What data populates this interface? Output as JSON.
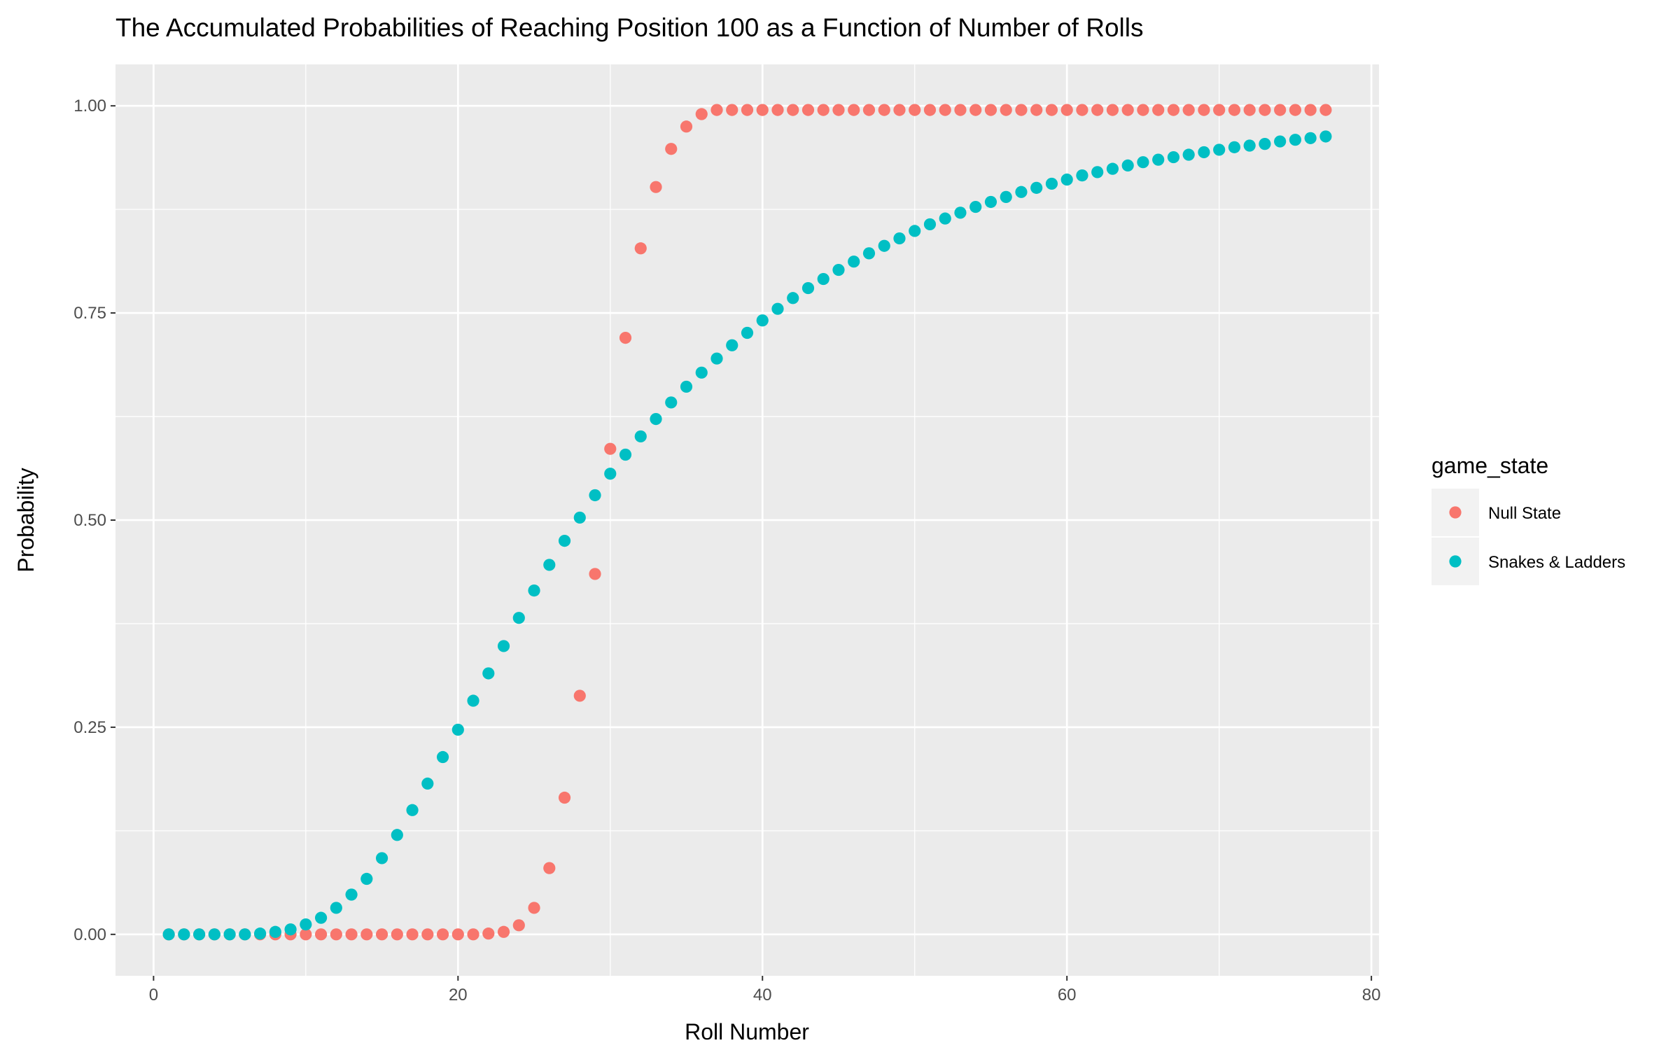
{
  "chart_data": {
    "type": "scatter",
    "title": "The Accumulated Probabilities of Reaching Position 100 as a Function of Number of Rolls",
    "xlabel": "Roll Number",
    "ylabel": "Probability",
    "xlim": [
      -2.5,
      80.5
    ],
    "ylim": [
      -0.05,
      1.05
    ],
    "x_ticks": [
      0,
      20,
      40,
      60,
      80
    ],
    "x_tick_labels": [
      "0",
      "20",
      "40",
      "60",
      "80"
    ],
    "y_ticks": [
      0,
      0.25,
      0.5,
      0.75,
      1
    ],
    "y_tick_labels": [
      "0.00",
      "0.25",
      "0.50",
      "0.75",
      "1.00"
    ],
    "grid": true,
    "legend": {
      "title": "game_state",
      "position": "right"
    },
    "series": [
      {
        "name": "Null State",
        "color": "#F8766D",
        "x": [
          1,
          2,
          3,
          4,
          5,
          6,
          7,
          8,
          9,
          10,
          11,
          12,
          13,
          14,
          15,
          16,
          17,
          18,
          19,
          20,
          21,
          22,
          23,
          24,
          25,
          26,
          27,
          28,
          29,
          30,
          31,
          32,
          33,
          34,
          35,
          36,
          37,
          38,
          39,
          40,
          41,
          42,
          43,
          44,
          45,
          46,
          47,
          48,
          49,
          50,
          51,
          52,
          53,
          54,
          55,
          56,
          57,
          58,
          59,
          60,
          61,
          62,
          63,
          64,
          65,
          66,
          67,
          68,
          69,
          70,
          71,
          72,
          73,
          74,
          75,
          76,
          77
        ],
        "y": [
          0,
          0,
          0,
          0,
          0,
          0,
          0,
          0,
          0,
          0,
          0,
          0,
          0,
          0,
          0,
          0,
          0,
          0,
          0,
          0,
          0,
          0.001,
          0.003,
          0.011,
          0.032,
          0.08,
          0.165,
          0.288,
          0.435,
          0.586,
          0.72,
          0.828,
          0.902,
          0.948,
          0.975,
          0.99,
          0.995,
          0.995,
          0.995,
          0.995,
          0.995,
          0.995,
          0.995,
          0.995,
          0.995,
          0.995,
          0.995,
          0.995,
          0.995,
          0.995,
          0.995,
          0.995,
          0.995,
          0.995,
          0.995,
          0.995,
          0.995,
          0.995,
          0.995,
          0.995,
          0.995,
          0.995,
          0.995,
          0.995,
          0.995,
          0.995,
          0.995,
          0.995,
          0.995,
          0.995,
          0.995,
          0.995,
          0.995,
          0.995,
          0.995,
          0.995,
          0.995
        ]
      },
      {
        "name": "Snakes & Ladders",
        "color": "#00BFC4",
        "x": [
          1,
          2,
          3,
          4,
          5,
          6,
          7,
          8,
          9,
          10,
          11,
          12,
          13,
          14,
          15,
          16,
          17,
          18,
          19,
          20,
          21,
          22,
          23,
          24,
          25,
          26,
          27,
          28,
          29,
          30,
          31,
          32,
          33,
          34,
          35,
          36,
          37,
          38,
          39,
          40,
          41,
          42,
          43,
          44,
          45,
          46,
          47,
          48,
          49,
          50,
          51,
          52,
          53,
          54,
          55,
          56,
          57,
          58,
          59,
          60,
          61,
          62,
          63,
          64,
          65,
          66,
          67,
          68,
          69,
          70,
          71,
          72,
          73,
          74,
          75,
          76,
          77
        ],
        "y": [
          0,
          0,
          0,
          0,
          0,
          0,
          0.001,
          0.003,
          0.006,
          0.012,
          0.02,
          0.032,
          0.048,
          0.067,
          0.092,
          0.12,
          0.15,
          0.182,
          0.214,
          0.247,
          0.282,
          0.315,
          0.348,
          0.382,
          0.415,
          0.446,
          0.475,
          0.503,
          0.53,
          0.556,
          0.579,
          0.601,
          0.622,
          0.642,
          0.661,
          0.678,
          0.695,
          0.711,
          0.726,
          0.741,
          0.755,
          0.768,
          0.78,
          0.791,
          0.802,
          0.812,
          0.822,
          0.831,
          0.84,
          0.849,
          0.857,
          0.864,
          0.871,
          0.878,
          0.884,
          0.89,
          0.896,
          0.901,
          0.906,
          0.911,
          0.916,
          0.92,
          0.924,
          0.928,
          0.932,
          0.935,
          0.938,
          0.941,
          0.944,
          0.947,
          0.95,
          0.952,
          0.954,
          0.957,
          0.959,
          0.961,
          0.963
        ]
      }
    ]
  }
}
